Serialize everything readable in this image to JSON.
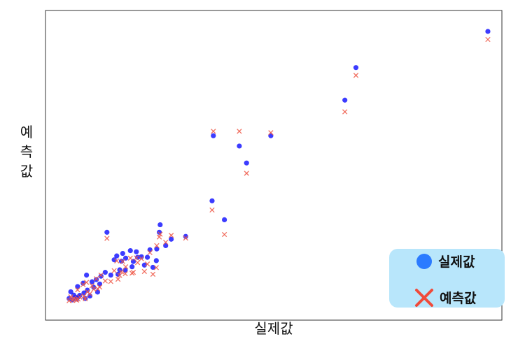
{
  "chart_data": {
    "type": "scatter",
    "xlabel": "실제값",
    "ylabel": "예측값",
    "ylabel_chars": [
      "예",
      "측",
      "값"
    ],
    "ticks_visible": false,
    "grid": false,
    "legend_position": "bottom-right",
    "colors": {
      "actual": "#1a1aff",
      "predicted": "#ef5a4a",
      "legend_bg": "#b8e6fb",
      "legend_dot": "#2b7bff",
      "legend_x": "#f04a3a"
    },
    "legend": {
      "actual_label": "실제값",
      "predicted_label": "예측값"
    },
    "xlim": [
      0,
      100
    ],
    "ylim": [
      0,
      100
    ],
    "series": [
      {
        "name": "실제값",
        "marker": "circle",
        "points": [
          [
            99.5,
            97.5
          ],
          [
            68.5,
            84.5
          ],
          [
            65.9,
            72.8
          ],
          [
            35.0,
            60.0
          ],
          [
            48.5,
            60.0
          ],
          [
            41.1,
            56.3
          ],
          [
            42.8,
            50.2
          ],
          [
            34.7,
            36.6
          ],
          [
            37.6,
            29.8
          ],
          [
            10.0,
            25.3
          ],
          [
            22.5,
            28.0
          ],
          [
            22.3,
            25.3
          ],
          [
            28.5,
            23.8
          ],
          [
            25.1,
            22.8
          ],
          [
            23.8,
            20.5
          ],
          [
            21.7,
            19.3
          ],
          [
            20.1,
            19.0
          ],
          [
            15.5,
            18.7
          ],
          [
            16.9,
            18.3
          ],
          [
            18.1,
            16.5
          ],
          [
            19.5,
            16.3
          ],
          [
            13.7,
            17.7
          ],
          [
            12.3,
            16.8
          ],
          [
            14.4,
            16.0
          ],
          [
            17.2,
            16.3
          ],
          [
            11.7,
            15.4
          ],
          [
            13.4,
            14.9
          ],
          [
            16.2,
            14.8
          ],
          [
            18.8,
            13.5
          ],
          [
            21.6,
            15.1
          ],
          [
            20.8,
            12.7
          ],
          [
            15.9,
            12.9
          ],
          [
            13.0,
            11.8
          ],
          [
            14.3,
            11.7
          ],
          [
            12.6,
            10.2
          ],
          [
            10.9,
            9.9
          ],
          [
            9.6,
            10.9
          ],
          [
            8.6,
            9.5
          ],
          [
            7.5,
            8.3
          ],
          [
            5.2,
            9.9
          ],
          [
            6.5,
            7.5
          ],
          [
            4.4,
            7.0
          ],
          [
            3.1,
            5.8
          ],
          [
            6.9,
            5.5
          ],
          [
            5.4,
            4.5
          ],
          [
            7.8,
            3.8
          ],
          [
            4.6,
            3.5
          ],
          [
            3.6,
            2.6
          ],
          [
            2.6,
            1.8
          ],
          [
            1.5,
            3.9
          ],
          [
            4.9,
            1.5
          ],
          [
            1.9,
            1.0
          ],
          [
            3.2,
            2.0
          ],
          [
            2.2,
            2.7
          ],
          [
            1.1,
            1.5
          ],
          [
            2.9,
            1.3
          ],
          [
            6.0,
            2.4
          ],
          [
            8.3,
            6.7
          ]
        ]
      },
      {
        "name": "예측값",
        "marker": "x",
        "points": [
          [
            99.5,
            94.6
          ],
          [
            68.5,
            81.7
          ],
          [
            65.9,
            68.6
          ],
          [
            35.0,
            61.6
          ],
          [
            48.5,
            61.1
          ],
          [
            41.1,
            61.6
          ],
          [
            42.8,
            46.5
          ],
          [
            34.7,
            33.3
          ],
          [
            37.6,
            24.5
          ],
          [
            10.0,
            23.1
          ],
          [
            22.5,
            24.6
          ],
          [
            22.3,
            23.6
          ],
          [
            28.5,
            23.2
          ],
          [
            25.1,
            24.2
          ],
          [
            23.8,
            21.7
          ],
          [
            21.7,
            20.5
          ],
          [
            20.1,
            18.0
          ],
          [
            15.5,
            16.0
          ],
          [
            16.9,
            16.1
          ],
          [
            18.1,
            15.8
          ],
          [
            19.5,
            13.9
          ],
          [
            13.7,
            14.8
          ],
          [
            12.3,
            15.0
          ],
          [
            14.4,
            12.9
          ],
          [
            17.2,
            14.4
          ],
          [
            11.7,
            11.5
          ],
          [
            13.4,
            11.1
          ],
          [
            16.2,
            10.9
          ],
          [
            18.8,
            11.2
          ],
          [
            21.6,
            12.6
          ],
          [
            20.8,
            10.2
          ],
          [
            15.9,
            10.6
          ],
          [
            13.0,
            9.8
          ],
          [
            14.3,
            10.4
          ],
          [
            12.6,
            8.4
          ],
          [
            10.9,
            7.6
          ],
          [
            9.6,
            7.8
          ],
          [
            8.6,
            9.9
          ],
          [
            7.5,
            8.6
          ],
          [
            5.2,
            7.3
          ],
          [
            6.5,
            6.1
          ],
          [
            4.4,
            6.5
          ],
          [
            3.1,
            4.6
          ],
          [
            6.9,
            4.8
          ],
          [
            5.4,
            3.9
          ],
          [
            7.8,
            5.0
          ],
          [
            4.6,
            2.4
          ],
          [
            3.6,
            2.0
          ],
          [
            2.6,
            1.1
          ],
          [
            1.5,
            2.1
          ],
          [
            4.9,
            1.4
          ],
          [
            1.9,
            0.8
          ],
          [
            3.2,
            1.3
          ],
          [
            2.2,
            1.6
          ],
          [
            1.1,
            0.7
          ],
          [
            2.9,
            0.9
          ],
          [
            6.0,
            3.2
          ],
          [
            8.3,
            5.6
          ]
        ]
      }
    ]
  }
}
